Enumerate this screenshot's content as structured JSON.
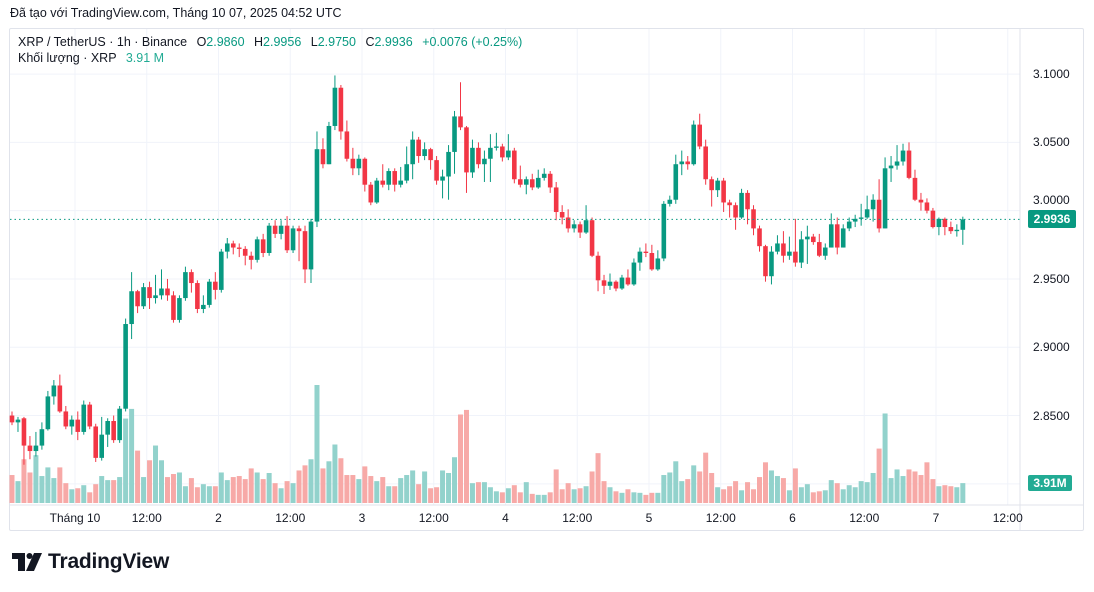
{
  "caption": "Đã tạo với TradingView.com, Tháng 10 07, 2025 04:52 UTC",
  "legend": {
    "symbol": "XRP / TetherUS · 1h · Binance",
    "o_label": "O",
    "o": "2.9860",
    "h_label": "H",
    "h": "2.9956",
    "l_label": "L",
    "l": "2.9750",
    "c_label": "C",
    "c": "2.9936",
    "change": "+0.0076 (+0.25%)",
    "volume_label": "Khối lượng · XRP",
    "volume_value": "3.91 M"
  },
  "price_axis": {
    "labels": [
      "3.1000",
      "3.0500",
      "3.0000",
      "2.9500",
      "2.9000",
      "2.8500"
    ],
    "current_price": "2.9936",
    "current_volume": "3.91M"
  },
  "time_axis": {
    "labels": [
      "Tháng 10",
      "12:00",
      "2",
      "12:00",
      "3",
      "12:00",
      "4",
      "12:00",
      "5",
      "12:00",
      "6",
      "12:00",
      "7",
      "12:00"
    ]
  },
  "colors": {
    "up": "#089981",
    "down": "#F23645",
    "volume_up": "#92d2cc",
    "volume_down": "#f7a9a7",
    "grid": "#f0f3fa",
    "current_price": "#089981"
  },
  "brand": {
    "name": "TradingView",
    "logo_icon": "tradingview-logo-icon"
  },
  "chart_data": {
    "type": "bar",
    "style": "candlestick",
    "symbol": "XRP / TetherUS",
    "interval": "1h",
    "ylim": [
      2.7845,
      3.133
    ],
    "grid": true,
    "ohlc": [
      [
        2.85,
        2.853,
        2.843,
        2.845
      ],
      [
        2.845,
        2.849,
        2.838,
        2.847
      ],
      [
        2.848,
        2.849,
        2.814,
        2.828
      ],
      [
        2.828,
        2.835,
        2.818,
        2.824
      ],
      [
        2.824,
        2.838,
        2.82,
        2.828
      ],
      [
        2.828,
        2.845,
        2.825,
        2.84
      ],
      [
        2.84,
        2.868,
        2.839,
        2.864
      ],
      [
        2.864,
        2.876,
        2.858,
        2.872
      ],
      [
        2.872,
        2.88,
        2.852,
        2.853
      ],
      [
        2.853,
        2.857,
        2.84,
        2.842
      ],
      [
        2.842,
        2.85,
        2.836,
        2.847
      ],
      [
        2.847,
        2.853,
        2.832,
        2.838
      ],
      [
        2.838,
        2.861,
        2.836,
        2.858
      ],
      [
        2.858,
        2.86,
        2.84,
        2.842
      ],
      [
        2.842,
        2.844,
        2.816,
        2.819
      ],
      [
        2.819,
        2.849,
        2.817,
        2.836
      ],
      [
        2.836,
        2.848,
        2.827,
        2.846
      ],
      [
        2.846,
        2.85,
        2.83,
        2.832
      ],
      [
        2.832,
        2.857,
        2.83,
        2.855
      ],
      [
        2.855,
        2.921,
        2.853,
        2.917
      ],
      [
        2.917,
        2.955,
        2.906,
        2.941
      ],
      [
        2.941,
        2.942,
        2.925,
        2.93
      ],
      [
        2.93,
        2.947,
        2.928,
        2.944
      ],
      [
        2.944,
        2.948,
        2.928,
        2.936
      ],
      [
        2.936,
        2.953,
        2.932,
        2.938
      ],
      [
        2.938,
        2.957,
        2.935,
        2.943
      ],
      [
        2.943,
        2.95,
        2.934,
        2.938
      ],
      [
        2.938,
        2.941,
        2.918,
        2.92
      ],
      [
        2.92,
        2.938,
        2.918,
        2.936
      ],
      [
        2.936,
        2.959,
        2.934,
        2.955
      ],
      [
        2.955,
        2.957,
        2.94,
        2.947
      ],
      [
        2.947,
        2.949,
        2.925,
        2.928
      ],
      [
        2.928,
        2.938,
        2.925,
        2.931
      ],
      [
        2.931,
        2.95,
        2.929,
        2.948
      ],
      [
        2.948,
        2.955,
        2.935,
        2.942
      ],
      [
        2.942,
        2.972,
        2.94,
        2.97
      ],
      [
        2.97,
        2.98,
        2.965,
        2.976
      ],
      [
        2.976,
        2.978,
        2.968,
        2.973
      ],
      [
        2.973,
        2.976,
        2.966,
        2.972
      ],
      [
        2.972,
        2.974,
        2.96,
        2.967
      ],
      [
        2.967,
        2.97,
        2.957,
        2.964
      ],
      [
        2.964,
        2.981,
        2.962,
        2.979
      ],
      [
        2.979,
        2.983,
        2.966,
        2.969
      ],
      [
        2.969,
        2.991,
        2.967,
        2.989
      ],
      [
        2.989,
        2.993,
        2.98,
        2.983
      ],
      [
        2.983,
        2.993,
        2.979,
        2.989
      ],
      [
        2.989,
        2.996,
        2.969,
        2.971
      ],
      [
        2.971,
        2.989,
        2.969,
        2.987
      ],
      [
        2.987,
        2.989,
        2.963,
        2.985
      ],
      [
        2.985,
        2.989,
        2.947,
        2.957
      ],
      [
        2.957,
        2.994,
        2.947,
        2.992
      ],
      [
        2.992,
        3.058,
        2.988,
        3.045
      ],
      [
        3.045,
        3.053,
        3.031,
        3.034
      ],
      [
        3.034,
        3.065,
        3.034,
        3.062
      ],
      [
        3.062,
        3.099,
        3.059,
        3.09
      ],
      [
        3.09,
        3.092,
        3.052,
        3.058
      ],
      [
        3.058,
        3.066,
        3.036,
        3.038
      ],
      [
        3.038,
        3.046,
        3.026,
        3.031
      ],
      [
        3.031,
        3.041,
        3.026,
        3.038
      ],
      [
        3.038,
        3.039,
        3.014,
        3.019
      ],
      [
        3.019,
        3.021,
        3.004,
        3.006
      ],
      [
        3.006,
        3.024,
        3.005,
        3.022
      ],
      [
        3.022,
        3.034,
        3.017,
        3.019
      ],
      [
        3.019,
        3.031,
        3.015,
        3.029
      ],
      [
        3.029,
        3.031,
        3.014,
        3.019
      ],
      [
        3.019,
        3.032,
        3.017,
        3.022
      ],
      [
        3.022,
        3.047,
        3.02,
        3.034
      ],
      [
        3.034,
        3.058,
        3.023,
        3.052
      ],
      [
        3.052,
        3.054,
        3.035,
        3.04
      ],
      [
        3.04,
        3.05,
        3.037,
        3.045
      ],
      [
        3.045,
        3.046,
        3.03,
        3.037
      ],
      [
        3.037,
        3.04,
        3.019,
        3.022
      ],
      [
        3.022,
        3.03,
        3.009,
        3.025
      ],
      [
        3.025,
        3.048,
        3.008,
        3.043
      ],
      [
        3.043,
        3.073,
        3.027,
        3.069
      ],
      [
        3.069,
        3.094,
        3.059,
        3.061
      ],
      [
        3.061,
        3.062,
        3.013,
        3.028
      ],
      [
        3.028,
        3.052,
        3.024,
        3.046
      ],
      [
        3.046,
        3.05,
        3.031,
        3.034
      ],
      [
        3.034,
        3.044,
        3.021,
        3.038
      ],
      [
        3.038,
        3.056,
        3.021,
        3.046
      ],
      [
        3.046,
        3.057,
        3.044,
        3.047
      ],
      [
        3.047,
        3.049,
        3.036,
        3.039
      ],
      [
        3.039,
        3.056,
        3.037,
        3.044
      ],
      [
        3.044,
        3.046,
        3.02,
        3.023
      ],
      [
        3.023,
        3.033,
        3.017,
        3.019
      ],
      [
        3.019,
        3.025,
        3.012,
        3.023
      ],
      [
        3.023,
        3.027,
        3.015,
        3.017
      ],
      [
        3.017,
        3.03,
        3.016,
        3.024
      ],
      [
        3.024,
        3.031,
        3.022,
        3.027
      ],
      [
        3.027,
        3.029,
        3.013,
        3.017
      ],
      [
        3.017,
        3.021,
        2.993,
        2.999
      ],
      [
        2.999,
        3.004,
        2.99,
        2.995
      ],
      [
        2.995,
        3.001,
        2.984,
        2.987
      ],
      [
        2.987,
        2.993,
        2.984,
        2.99
      ],
      [
        2.99,
        2.992,
        2.98,
        2.984
      ],
      [
        2.984,
        3.004,
        2.983,
        2.993
      ],
      [
        2.993,
        2.995,
        2.966,
        2.967
      ],
      [
        2.967,
        2.97,
        2.941,
        2.949
      ],
      [
        2.949,
        2.953,
        2.939,
        2.945
      ],
      [
        2.945,
        2.954,
        2.942,
        2.948
      ],
      [
        2.948,
        2.949,
        2.941,
        2.943
      ],
      [
        2.943,
        2.953,
        2.942,
        2.951
      ],
      [
        2.951,
        2.957,
        2.945,
        2.946
      ],
      [
        2.946,
        2.965,
        2.945,
        2.962
      ],
      [
        2.962,
        2.973,
        2.956,
        2.97
      ],
      [
        2.97,
        2.976,
        2.966,
        2.969
      ],
      [
        2.969,
        2.975,
        2.956,
        2.957
      ],
      [
        2.957,
        2.971,
        2.956,
        2.965
      ],
      [
        2.965,
        3.007,
        2.963,
        3.005
      ],
      [
        3.005,
        3.011,
        3.003,
        3.008
      ],
      [
        3.008,
        3.041,
        3.005,
        3.034
      ],
      [
        3.034,
        3.044,
        3.026,
        3.036
      ],
      [
        3.036,
        3.04,
        3.03,
        3.034
      ],
      [
        3.034,
        3.066,
        3.033,
        3.063
      ],
      [
        3.063,
        3.071,
        3.045,
        3.047
      ],
      [
        3.047,
        3.052,
        3.019,
        3.023
      ],
      [
        3.023,
        3.025,
        3.003,
        3.015
      ],
      [
        3.015,
        3.024,
        3.01,
        3.022
      ],
      [
        3.022,
        3.024,
        2.999,
        3.006
      ],
      [
        3.006,
        3.008,
        2.995,
        3.004
      ],
      [
        3.004,
        3.006,
        2.986,
        2.995
      ],
      [
        2.995,
        3.016,
        2.994,
        3.013
      ],
      [
        3.013,
        3.015,
        2.99,
        3.001
      ],
      [
        3.001,
        3.004,
        2.982,
        2.987
      ],
      [
        2.987,
        2.989,
        2.97,
        2.974
      ],
      [
        2.974,
        2.975,
        2.948,
        2.952
      ],
      [
        2.952,
        2.974,
        2.946,
        2.97
      ],
      [
        2.97,
        2.982,
        2.968,
        2.976
      ],
      [
        2.976,
        2.985,
        2.962,
        2.967
      ],
      [
        2.967,
        2.981,
        2.964,
        2.97
      ],
      [
        2.97,
        2.994,
        2.959,
        2.962
      ],
      [
        2.962,
        2.985,
        2.958,
        2.979
      ],
      [
        2.979,
        2.989,
        2.961,
        2.981
      ],
      [
        2.981,
        2.983,
        2.975,
        2.977
      ],
      [
        2.977,
        2.983,
        2.966,
        2.967
      ],
      [
        2.967,
        2.976,
        2.964,
        2.973
      ],
      [
        2.973,
        2.998,
        2.973,
        2.99
      ],
      [
        2.99,
        2.995,
        2.968,
        2.973
      ],
      [
        2.973,
        2.99,
        2.973,
        2.987
      ],
      [
        2.987,
        2.995,
        2.985,
        2.992
      ],
      [
        2.992,
        2.997,
        2.988,
        2.994
      ],
      [
        2.994,
        3.005,
        2.989,
        2.995
      ],
      [
        2.995,
        3.011,
        2.994,
        3.001
      ],
      [
        3.001,
        3.012,
        2.992,
        3.008
      ],
      [
        3.008,
        3.023,
        2.984,
        2.987
      ],
      [
        2.987,
        3.039,
        2.987,
        3.031
      ],
      [
        3.031,
        3.04,
        3.021,
        3.033
      ],
      [
        3.033,
        3.048,
        3.03,
        3.036
      ],
      [
        3.036,
        3.049,
        3.033,
        3.044
      ],
      [
        3.044,
        3.05,
        3.023,
        3.024
      ],
      [
        3.024,
        3.03,
        3.007,
        3.008
      ],
      [
        3.008,
        3.013,
        3.0,
        3.006
      ],
      [
        3.006,
        3.009,
        2.998,
        3.0
      ],
      [
        3.0,
        3.002,
        2.987,
        2.988
      ],
      [
        2.988,
        2.995,
        2.982,
        2.994
      ],
      [
        2.994,
        2.995,
        2.982,
        2.988
      ],
      [
        2.988,
        2.992,
        2.983,
        2.985
      ],
      [
        2.985,
        2.99,
        2.981,
        2.986
      ],
      [
        2.986,
        2.9956,
        2.975,
        2.9936
      ]
    ],
    "volume_unit": "M",
    "volume": [
      5.5,
      4.3,
      8.6,
      6.0,
      9.4,
      5.3,
      7.0,
      4.9,
      7.0,
      3.9,
      2.7,
      2.9,
      3.5,
      2.1,
      3.7,
      5.3,
      4.5,
      4.5,
      5.1,
      16.6,
      18.5,
      10.3,
      5.1,
      8.4,
      11.3,
      8.4,
      5.1,
      5.7,
      6.0,
      3.3,
      4.9,
      3.1,
      3.7,
      3.3,
      3.3,
      6.0,
      4.5,
      5.1,
      5.3,
      4.7,
      6.8,
      6.0,
      4.7,
      5.9,
      3.9,
      2.9,
      4.3,
      3.9,
      6.4,
      7.4,
      8.6,
      23.2,
      6.8,
      8.2,
      11.5,
      8.8,
      5.5,
      5.5,
      4.7,
      7.2,
      5.3,
      4.3,
      5.1,
      3.3,
      3.3,
      4.9,
      5.5,
      6.4,
      3.7,
      6.2,
      2.9,
      3.1,
      6.4,
      5.9,
      9.0,
      17.4,
      18.3,
      3.9,
      4.1,
      4.1,
      3.1,
      2.3,
      2.1,
      2.9,
      3.5,
      2.1,
      4.1,
      1.8,
      1.6,
      1.6,
      2.1,
      6.6,
      2.7,
      3.9,
      2.7,
      2.9,
      3.3,
      6.2,
      9.8,
      4.3,
      3.1,
      2.3,
      2.0,
      2.7,
      2.1,
      2.0,
      1.6,
      2.0,
      2.0,
      5.5,
      6.0,
      8.2,
      4.3,
      4.7,
      7.4,
      6.2,
      9.9,
      5.9,
      3.1,
      2.7,
      3.3,
      4.3,
      2.5,
      4.1,
      2.7,
      5.1,
      8.0,
      6.4,
      5.3,
      4.9,
      2.5,
      6.8,
      3.1,
      3.7,
      2.1,
      2.3,
      2.5,
      4.5,
      3.9,
      2.7,
      3.5,
      3.1,
      4.3,
      4.1,
      5.9,
      10.7,
      17.6,
      4.9,
      6.6,
      5.3,
      6.6,
      6.2,
      5.5,
      8.0,
      4.7,
      3.3,
      3.5,
      3.3,
      3.1,
      3.91
    ]
  }
}
